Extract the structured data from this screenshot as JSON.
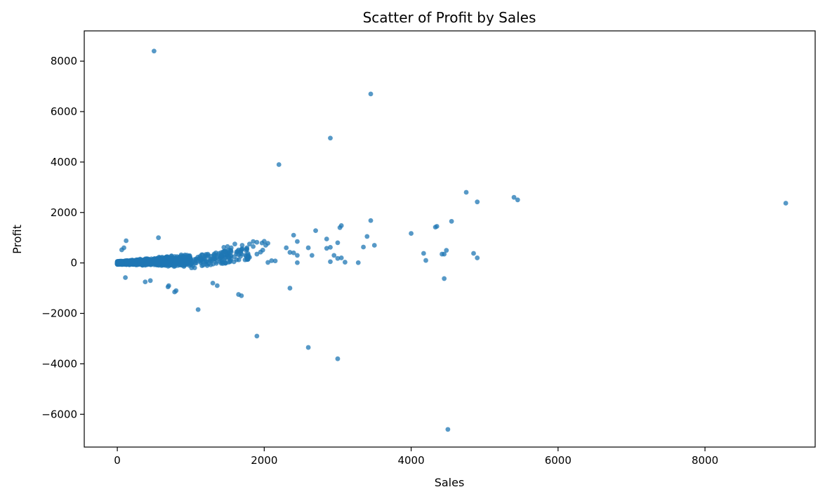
{
  "chart_data": {
    "type": "scatter",
    "title": "Scatter of Profit by Sales",
    "xlabel": "Sales",
    "ylabel": "Profit",
    "xlim": [
      -450,
      9500
    ],
    "ylim": [
      -7300,
      9200
    ],
    "xticks": [
      0,
      2000,
      4000,
      6000,
      8000
    ],
    "xtick_labels": [
      "0",
      "2000",
      "4000",
      "6000",
      "8000"
    ],
    "yticks": [
      -6000,
      -4000,
      -2000,
      0,
      2000,
      4000,
      6000,
      8000
    ],
    "ytick_labels": [
      "−6000",
      "−4000",
      "−2000",
      "0",
      "2000",
      "4000",
      "6000",
      "8000"
    ],
    "grid": false,
    "marker_color": "#1f77b4",
    "marker_alpha": 0.75,
    "series": [
      {
        "x": [
          500,
          3450,
          2900,
          2200,
          9100,
          5400,
          5450,
          4750,
          4900,
          4550,
          3450,
          4350,
          4330,
          4000,
          3050,
          3030,
          3400,
          3500,
          3350,
          2700,
          2400,
          2850,
          2300,
          2900,
          2850,
          2600,
          2650,
          2450,
          3000,
          2400,
          2350,
          4450,
          4480,
          4170,
          4200,
          4420,
          4850,
          4900,
          3280,
          3100,
          3050,
          2950,
          3000,
          2450,
          2450,
          2900,
          4450,
          2350,
          1900,
          2600,
          3000,
          4500,
          1100,
          1650,
          1690,
          800,
          780,
          1300,
          1360,
          690,
          700,
          380,
          450,
          110,
          1800,
          1850,
          1900,
          2000,
          2050,
          1850,
          1700,
          1600,
          1550,
          1500,
          1450,
          120,
          90,
          60,
          560,
          1970,
          2020,
          1980,
          1950,
          1900,
          2100,
          2150,
          2050
        ],
        "y": [
          8400,
          6700,
          4950,
          3900,
          2370,
          2600,
          2500,
          2800,
          2420,
          1650,
          1680,
          1450,
          1420,
          1170,
          1480,
          1400,
          1050,
          700,
          630,
          1280,
          1100,
          950,
          600,
          620,
          580,
          600,
          300,
          850,
          800,
          400,
          420,
          350,
          500,
          380,
          100,
          350,
          380,
          200,
          10,
          30,
          200,
          300,
          180,
          300,
          10,
          50,
          -620,
          -1000,
          -2900,
          -3350,
          -3800,
          -6600,
          -1850,
          -1250,
          -1300,
          -1100,
          -1150,
          -800,
          -900,
          -950,
          -900,
          -750,
          -700,
          -580,
          750,
          850,
          820,
          860,
          780,
          650,
          700,
          750,
          600,
          650,
          620,
          880,
          600,
          520,
          1000,
          790,
          700,
          510,
          430,
          350,
          90,
          80,
          20
        ],
        "dense_cluster": {
          "x": [
            0,
            1000
          ],
          "y": [
            -500,
            500
          ],
          "trend_slope": 0.2,
          "extension": {
            "x": [
              1000,
              1800
            ],
            "y": [
              0,
              400
            ]
          }
        }
      }
    ]
  }
}
